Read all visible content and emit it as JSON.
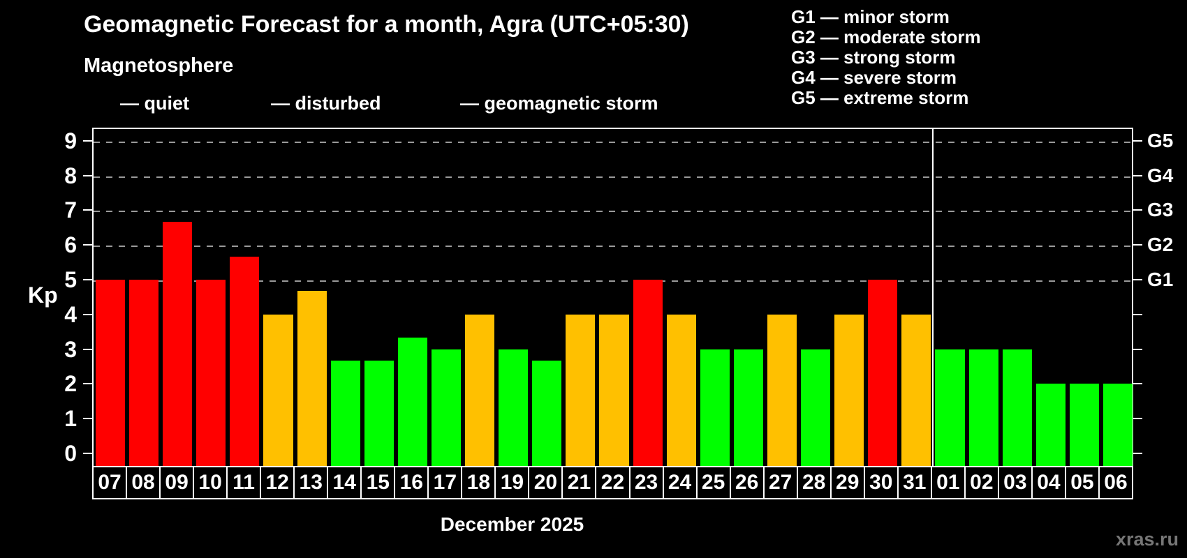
{
  "header": {
    "subtitle": "Magnetosphere"
  },
  "legend": {
    "quiet_label": "— quiet",
    "disturbed_label": "— disturbed",
    "storm_label": "— geomagnetic storm"
  },
  "g_scale_legend": [
    "G1 — minor storm",
    "G2 — moderate storm",
    "G3 — strong storm",
    "G4 — severe storm",
    "G5 — extreme storm"
  ],
  "colors": {
    "quiet": "#00ff00",
    "disturbed": "#ffc000",
    "storm": "#ff0000",
    "axis": "#ffffff",
    "grid": "#9a9a9a",
    "background": "#000000",
    "watermark": "#767676"
  },
  "y_axis": {
    "label": "Kp",
    "ticks": [
      0,
      1,
      2,
      3,
      4,
      5,
      6,
      7,
      8,
      9
    ],
    "g_levels": [
      {
        "label": "G1",
        "kp": 5
      },
      {
        "label": "G2",
        "kp": 6
      },
      {
        "label": "G3",
        "kp": 7
      },
      {
        "label": "G4",
        "kp": 8
      },
      {
        "label": "G5",
        "kp": 9
      }
    ]
  },
  "x_axis": {
    "month_label": "December 2025"
  },
  "watermark": "xras.ru",
  "chart_data": {
    "type": "bar",
    "title": "Geomagnetic Forecast for a month, Agra (UTC+05:30)",
    "xlabel": "December 2025",
    "ylabel": "Kp",
    "ylim": [
      0,
      9
    ],
    "grid": "dashed horizontal lines at Kp 5,6,7,8,9 (G1–G5)",
    "legend_position": "top",
    "categories": [
      "07",
      "08",
      "09",
      "10",
      "11",
      "12",
      "13",
      "14",
      "15",
      "16",
      "17",
      "18",
      "19",
      "20",
      "21",
      "22",
      "23",
      "24",
      "25",
      "26",
      "27",
      "28",
      "29",
      "30",
      "31",
      "01",
      "02",
      "03",
      "04",
      "05",
      "06"
    ],
    "values": [
      5,
      5,
      6.67,
      5,
      5.67,
      4,
      4.67,
      2.67,
      2.67,
      3.33,
      3,
      4,
      3,
      2.67,
      4,
      4,
      5,
      4,
      3,
      3,
      4,
      3,
      4,
      5,
      4,
      3,
      3,
      3,
      2,
      2,
      2
    ],
    "statuses": [
      "storm",
      "storm",
      "storm",
      "storm",
      "storm",
      "disturbed",
      "disturbed",
      "quiet",
      "quiet",
      "quiet",
      "quiet",
      "disturbed",
      "quiet",
      "quiet",
      "disturbed",
      "disturbed",
      "storm",
      "disturbed",
      "quiet",
      "quiet",
      "disturbed",
      "quiet",
      "disturbed",
      "storm",
      "disturbed",
      "quiet",
      "quiet",
      "quiet",
      "quiet",
      "quiet",
      "quiet"
    ],
    "month_separator_index": 25
  }
}
